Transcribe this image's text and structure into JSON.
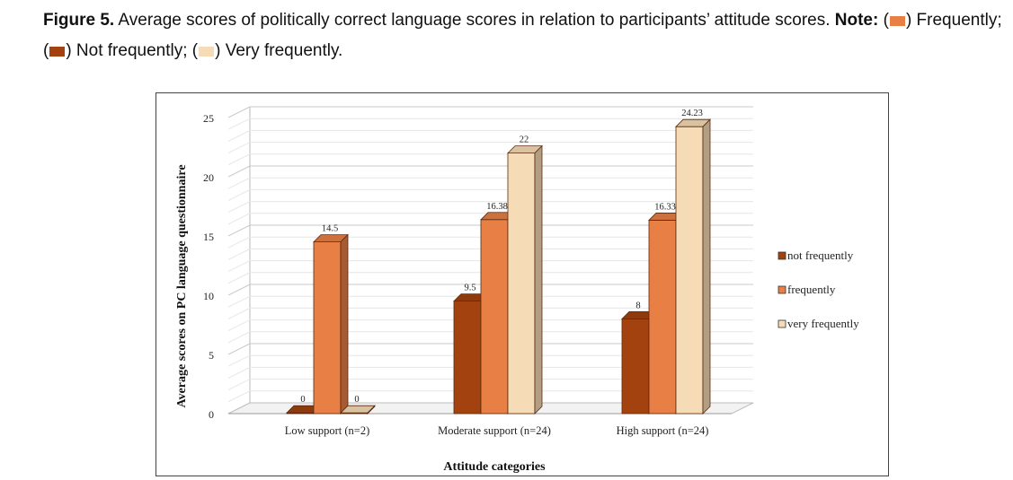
{
  "caption": {
    "label": "Figure 5.",
    "text": "Average scores of politically correct language scores in relation to participants’ attitude scores.",
    "note_label": "Note:",
    "note_frequently": ") Frequently; (",
    "note_not_frequently": ") Not frequently; (",
    "note_very_frequently": ") Very frequently."
  },
  "colors": {
    "not_frequently": "#A3420F",
    "frequently": "#E87F45",
    "very_frequently": "#F6DCB6"
  },
  "chart_data": {
    "type": "bar",
    "xlabel": "Attitude categories",
    "ylabel": "Average scores on PC language questionnaire",
    "ylim": [
      0,
      25
    ],
    "yticks": [
      0,
      5,
      10,
      15,
      20,
      25
    ],
    "grid": true,
    "legend_position": "right",
    "categories": [
      "Low support (n=2)",
      "Moderate support (n=24)",
      "High support (n=24)"
    ],
    "series": [
      {
        "name": "not frequently",
        "values": [
          0,
          9.5,
          8
        ],
        "labels": [
          "0",
          "9.5",
          "8"
        ]
      },
      {
        "name": "frequently",
        "values": [
          14.5,
          16.38,
          16.33
        ],
        "labels": [
          "14.5",
          "16.38",
          "16.33"
        ]
      },
      {
        "name": "very frequently",
        "values": [
          0,
          22,
          24.23
        ],
        "labels": [
          "0",
          "22",
          "24.23"
        ]
      }
    ]
  }
}
